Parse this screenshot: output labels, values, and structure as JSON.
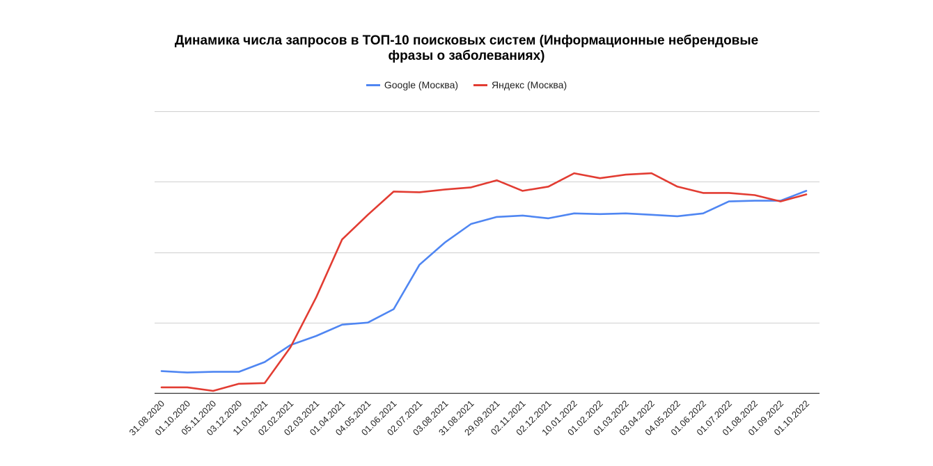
{
  "chart_data": {
    "type": "line",
    "title_lines": [
      "Динамика числа запросов в ТОП-10 поисковых систем (Информационные небрендовые",
      "фразы о заболеваниях)"
    ],
    "xlabel": "",
    "ylabel": "",
    "y_tick_labels_shown": false,
    "ylim": [
      0,
      400
    ],
    "y_gridlines": [
      0,
      100,
      200,
      300,
      400
    ],
    "grid": true,
    "legend_position": "top",
    "categories": [
      "31.08.2020",
      "01.10.2020",
      "05.11.2020",
      "03.12.2020",
      "11.01.2021",
      "02.02.2021",
      "02.03.2021",
      "01.04.2021",
      "04.05.2021",
      "01.06.2021",
      "02.07.2021",
      "03.08.2021",
      "31.08.2021",
      "29.09.2021",
      "02.11.2021",
      "02.12.2021",
      "10.01.2022",
      "01.02.2022",
      "01.03.2022",
      "03.04.2022",
      "04.05.2022",
      "01.06.2022",
      "01.07.2022",
      "01.08.2022",
      "01.09.2022",
      "01.10.2022"
    ],
    "series": [
      {
        "name": "Google (Москва)",
        "color": "#4f86f2",
        "values": [
          31,
          29,
          30,
          30,
          44,
          68,
          81,
          97,
          100,
          119,
          182,
          214,
          240,
          250,
          252,
          248,
          255,
          254,
          255,
          253,
          251,
          255,
          272,
          273,
          273,
          287
        ]
      },
      {
        "name": "Яндекс (Москва)",
        "color": "#e23c32",
        "values": [
          8,
          8,
          3,
          13,
          14,
          65,
          136,
          218,
          253,
          286,
          285,
          289,
          292,
          302,
          287,
          293,
          312,
          305,
          310,
          312,
          293,
          284,
          284,
          281,
          272,
          282
        ]
      }
    ]
  }
}
